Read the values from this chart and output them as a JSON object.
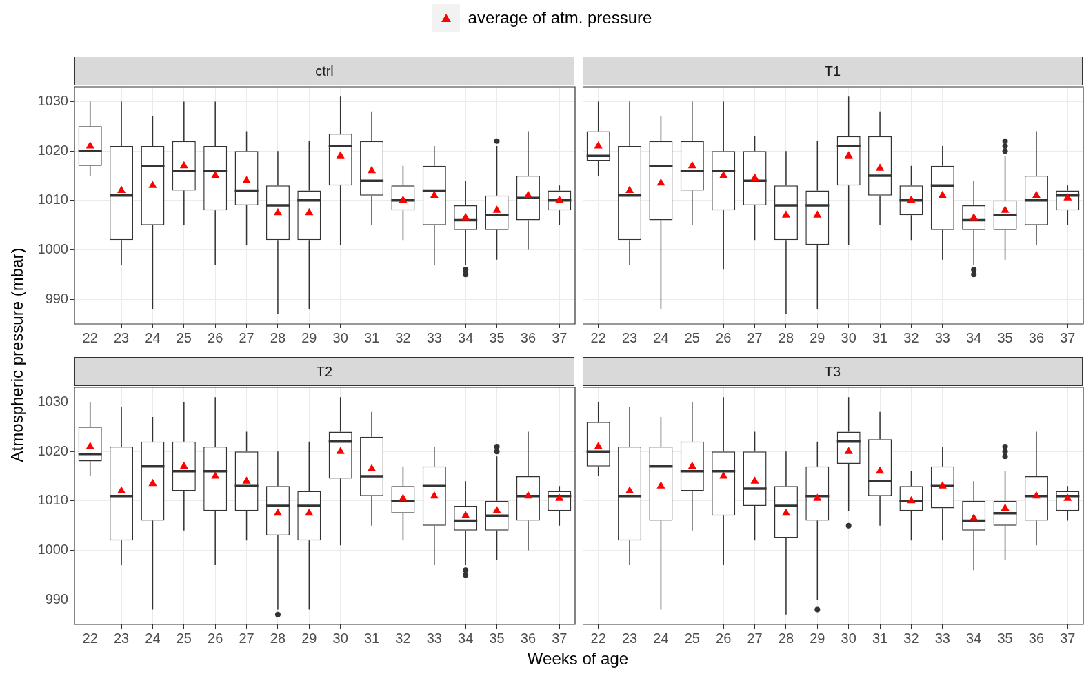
{
  "chart_data": [
    {
      "type": "box",
      "title": "ctrl",
      "ylabel": "Atmospheric pressure (mbar)",
      "legend": "top",
      "grid": true,
      "ylim": [
        985,
        1033
      ],
      "yticks": [
        990,
        1000,
        1010,
        1020,
        1030
      ],
      "categories": [
        "22",
        "23",
        "24",
        "25",
        "26",
        "27",
        "28",
        "29",
        "30",
        "31",
        "32",
        "33",
        "34",
        "35",
        "36",
        "37"
      ],
      "series": [
        {
          "type": "box",
          "color": "#333333",
          "boxes": [
            {
              "low": 1015,
              "q1": 1017,
              "median": 1020,
              "q3": 1025,
              "high": 1030
            },
            {
              "low": 997,
              "q1": 1002,
              "median": 1011,
              "q3": 1021,
              "high": 1030
            },
            {
              "low": 988,
              "q1": 1005,
              "median": 1017,
              "q3": 1021,
              "high": 1027
            },
            {
              "low": 1005,
              "q1": 1012,
              "median": 1016,
              "q3": 1022,
              "high": 1030
            },
            {
              "low": 997,
              "q1": 1008,
              "median": 1016,
              "q3": 1021,
              "high": 1030
            },
            {
              "low": 1001,
              "q1": 1009,
              "median": 1012,
              "q3": 1020,
              "high": 1024
            },
            {
              "low": 987,
              "q1": 1002,
              "median": 1009,
              "q3": 1013,
              "high": 1020
            },
            {
              "low": 988,
              "q1": 1002,
              "median": 1010,
              "q3": 1012,
              "high": 1022
            },
            {
              "low": 1001,
              "q1": 1013,
              "median": 1021,
              "q3": 1023.5,
              "high": 1031
            },
            {
              "low": 1005,
              "q1": 1011,
              "median": 1014,
              "q3": 1022,
              "high": 1028
            },
            {
              "low": 1002,
              "q1": 1008,
              "median": 1010,
              "q3": 1013,
              "high": 1017
            },
            {
              "low": 997,
              "q1": 1005,
              "median": 1012,
              "q3": 1017,
              "high": 1021
            },
            {
              "low": 997,
              "q1": 1004,
              "median": 1006,
              "q3": 1009,
              "high": 1014,
              "outliers": [
                996,
                995
              ]
            },
            {
              "low": 998,
              "q1": 1004,
              "median": 1007,
              "q3": 1011,
              "high": 1021,
              "outliers": [
                1022
              ]
            },
            {
              "low": 1000,
              "q1": 1006,
              "median": 1010.5,
              "q3": 1015,
              "high": 1024
            },
            {
              "low": 1005,
              "q1": 1008,
              "median": 1010,
              "q3": 1012,
              "high": 1013
            }
          ]
        },
        {
          "type": "scatter",
          "name": "average of atm. pressure",
          "color": "#ff0000",
          "marker": "triangle",
          "x": [
            "22",
            "23",
            "24",
            "25",
            "26",
            "27",
            "28",
            "29",
            "30",
            "31",
            "32",
            "33",
            "34",
            "35",
            "36",
            "37"
          ],
          "values": [
            1021,
            1012,
            1013,
            1017,
            1015,
            1014,
            1007.5,
            1007.5,
            1019,
            1016,
            1010,
            1011,
            1006.5,
            1008,
            1011,
            1010
          ]
        }
      ]
    },
    {
      "type": "box",
      "title": "T1",
      "tick_labels": "x",
      "grid": true,
      "ylim": [
        985,
        1033
      ],
      "yticks": [
        990,
        1000,
        1010,
        1020,
        1030
      ],
      "categories": [
        "22",
        "23",
        "24",
        "25",
        "26",
        "27",
        "28",
        "29",
        "30",
        "31",
        "32",
        "33",
        "34",
        "35",
        "36",
        "37"
      ],
      "series": [
        {
          "type": "box",
          "color": "#333333",
          "boxes": [
            {
              "low": 1015,
              "q1": 1018,
              "median": 1019,
              "q3": 1024,
              "high": 1030
            },
            {
              "low": 997,
              "q1": 1002,
              "median": 1011,
              "q3": 1021,
              "high": 1030
            },
            {
              "low": 988,
              "q1": 1006,
              "median": 1017,
              "q3": 1022,
              "high": 1027
            },
            {
              "low": 1005,
              "q1": 1012,
              "median": 1016,
              "q3": 1022,
              "high": 1030
            },
            {
              "low": 996,
              "q1": 1008,
              "median": 1016,
              "q3": 1020,
              "high": 1030
            },
            {
              "low": 1002,
              "q1": 1009,
              "median": 1014,
              "q3": 1020,
              "high": 1023
            },
            {
              "low": 987,
              "q1": 1002,
              "median": 1009,
              "q3": 1013,
              "high": 1020
            },
            {
              "low": 988,
              "q1": 1001,
              "median": 1009,
              "q3": 1012,
              "high": 1022
            },
            {
              "low": 1001,
              "q1": 1013,
              "median": 1021,
              "q3": 1023,
              "high": 1031
            },
            {
              "low": 1005,
              "q1": 1011,
              "median": 1015,
              "q3": 1023,
              "high": 1028
            },
            {
              "low": 1002,
              "q1": 1007,
              "median": 1010,
              "q3": 1013,
              "high": 1017
            },
            {
              "low": 998,
              "q1": 1004,
              "median": 1013,
              "q3": 1017,
              "high": 1021
            },
            {
              "low": 997,
              "q1": 1004,
              "median": 1006,
              "q3": 1009,
              "high": 1014,
              "outliers": [
                996,
                995
              ]
            },
            {
              "low": 998,
              "q1": 1004,
              "median": 1007,
              "q3": 1010,
              "high": 1019,
              "outliers": [
                1022,
                1021,
                1020
              ]
            },
            {
              "low": 1001,
              "q1": 1005,
              "median": 1010,
              "q3": 1015,
              "high": 1024
            },
            {
              "low": 1005,
              "q1": 1008,
              "median": 1011,
              "q3": 1012,
              "high": 1013
            }
          ]
        },
        {
          "type": "scatter",
          "color": "#ff0000",
          "marker": "triangle",
          "x": [
            "22",
            "23",
            "24",
            "25",
            "26",
            "27",
            "28",
            "29",
            "30",
            "31",
            "32",
            "33",
            "34",
            "35",
            "36",
            "37"
          ],
          "values": [
            1021,
            1012,
            1013.5,
            1017,
            1015,
            1014.5,
            1007,
            1007,
            1019,
            1016.5,
            1010,
            1011,
            1006.5,
            1008,
            1011,
            1010.5
          ]
        }
      ]
    },
    {
      "type": "box",
      "title": "T2",
      "xlabel": "Weeks of age",
      "grid": true,
      "ylim": [
        985,
        1033
      ],
      "yticks": [
        990,
        1000,
        1010,
        1020,
        1030
      ],
      "categories": [
        "22",
        "23",
        "24",
        "25",
        "26",
        "27",
        "28",
        "29",
        "30",
        "31",
        "32",
        "33",
        "34",
        "35",
        "36",
        "37"
      ],
      "series": [
        {
          "type": "box",
          "color": "#333333",
          "boxes": [
            {
              "low": 1015,
              "q1": 1018,
              "median": 1019.5,
              "q3": 1025,
              "high": 1030
            },
            {
              "low": 997,
              "q1": 1002,
              "median": 1011,
              "q3": 1021,
              "high": 1029
            },
            {
              "low": 988,
              "q1": 1006,
              "median": 1017,
              "q3": 1022,
              "high": 1027
            },
            {
              "low": 1004,
              "q1": 1012,
              "median": 1016,
              "q3": 1022,
              "high": 1030
            },
            {
              "low": 997,
              "q1": 1008,
              "median": 1016,
              "q3": 1021,
              "high": 1031
            },
            {
              "low": 1002,
              "q1": 1008,
              "median": 1013,
              "q3": 1020,
              "high": 1024
            },
            {
              "low": 988,
              "q1": 1003,
              "median": 1009,
              "q3": 1013,
              "high": 1020,
              "outliers": [
                987
              ]
            },
            {
              "low": 988,
              "q1": 1002,
              "median": 1009,
              "q3": 1012,
              "high": 1022
            },
            {
              "low": 1001,
              "q1": 1014.5,
              "median": 1022,
              "q3": 1024,
              "high": 1031
            },
            {
              "low": 1005,
              "q1": 1011,
              "median": 1015,
              "q3": 1023,
              "high": 1028
            },
            {
              "low": 1002,
              "q1": 1007.5,
              "median": 1010,
              "q3": 1013,
              "high": 1017
            },
            {
              "low": 997,
              "q1": 1005,
              "median": 1013,
              "q3": 1017,
              "high": 1021
            },
            {
              "low": 997,
              "q1": 1004,
              "median": 1006,
              "q3": 1009,
              "high": 1014,
              "outliers": [
                996,
                995
              ]
            },
            {
              "low": 998,
              "q1": 1004,
              "median": 1007,
              "q3": 1010,
              "high": 1019,
              "outliers": [
                1021,
                1020
              ]
            },
            {
              "low": 1000,
              "q1": 1006,
              "median": 1011,
              "q3": 1015,
              "high": 1024
            },
            {
              "low": 1005,
              "q1": 1008,
              "median": 1011,
              "q3": 1012,
              "high": 1013
            }
          ]
        },
        {
          "type": "scatter",
          "color": "#ff0000",
          "marker": "triangle",
          "x": [
            "22",
            "23",
            "24",
            "25",
            "26",
            "27",
            "28",
            "29",
            "30",
            "31",
            "32",
            "33",
            "34",
            "35",
            "36",
            "37"
          ],
          "values": [
            1021,
            1012,
            1013.5,
            1017,
            1015,
            1014,
            1007.5,
            1007.5,
            1020,
            1016.5,
            1010.5,
            1011,
            1007,
            1008,
            1011,
            1010.5
          ]
        }
      ]
    },
    {
      "type": "box",
      "title": "T3",
      "tick_labels": "x",
      "grid": true,
      "ylim": [
        985,
        1033
      ],
      "yticks": [
        990,
        1000,
        1010,
        1020,
        1030
      ],
      "categories": [
        "22",
        "23",
        "24",
        "25",
        "26",
        "27",
        "28",
        "29",
        "30",
        "31",
        "32",
        "33",
        "34",
        "35",
        "36",
        "37"
      ],
      "series": [
        {
          "type": "box",
          "color": "#333333",
          "boxes": [
            {
              "low": 1015,
              "q1": 1017,
              "median": 1020,
              "q3": 1026,
              "high": 1030
            },
            {
              "low": 997,
              "q1": 1002,
              "median": 1011,
              "q3": 1021,
              "high": 1029
            },
            {
              "low": 988,
              "q1": 1006,
              "median": 1017,
              "q3": 1021,
              "high": 1027
            },
            {
              "low": 1004,
              "q1": 1012,
              "median": 1016,
              "q3": 1022,
              "high": 1030
            },
            {
              "low": 997,
              "q1": 1007,
              "median": 1016,
              "q3": 1020,
              "high": 1031
            },
            {
              "low": 1002,
              "q1": 1009,
              "median": 1012.5,
              "q3": 1020,
              "high": 1024
            },
            {
              "low": 987,
              "q1": 1002.5,
              "median": 1009,
              "q3": 1013,
              "high": 1020
            },
            {
              "low": 990,
              "q1": 1006,
              "median": 1011,
              "q3": 1017,
              "high": 1022,
              "outliers": [
                988
              ]
            },
            {
              "low": 1008,
              "q1": 1017.5,
              "median": 1022,
              "q3": 1024,
              "high": 1031,
              "outliers": [
                1005
              ]
            },
            {
              "low": 1005,
              "q1": 1011,
              "median": 1014,
              "q3": 1022.5,
              "high": 1028
            },
            {
              "low": 1002,
              "q1": 1008,
              "median": 1010,
              "q3": 1013,
              "high": 1016
            },
            {
              "low": 1002,
              "q1": 1008.5,
              "median": 1013,
              "q3": 1017,
              "high": 1021
            },
            {
              "low": 996,
              "q1": 1004,
              "median": 1006,
              "q3": 1010,
              "high": 1014
            },
            {
              "low": 998,
              "q1": 1005,
              "median": 1007.5,
              "q3": 1010,
              "high": 1016,
              "outliers": [
                1021,
                1020,
                1019
              ]
            },
            {
              "low": 1001,
              "q1": 1006,
              "median": 1011,
              "q3": 1015,
              "high": 1024
            },
            {
              "low": 1006,
              "q1": 1008,
              "median": 1011,
              "q3": 1012,
              "high": 1013
            }
          ]
        },
        {
          "type": "scatter",
          "color": "#ff0000",
          "marker": "triangle",
          "x": [
            "22",
            "23",
            "24",
            "25",
            "26",
            "27",
            "28",
            "29",
            "30",
            "31",
            "32",
            "33",
            "34",
            "35",
            "36",
            "37"
          ],
          "values": [
            1021,
            1012,
            1013,
            1017,
            1015,
            1014,
            1007.5,
            1010.5,
            1020,
            1016,
            1010,
            1013,
            1006.5,
            1008.5,
            1011,
            1010.5
          ]
        }
      ]
    }
  ]
}
